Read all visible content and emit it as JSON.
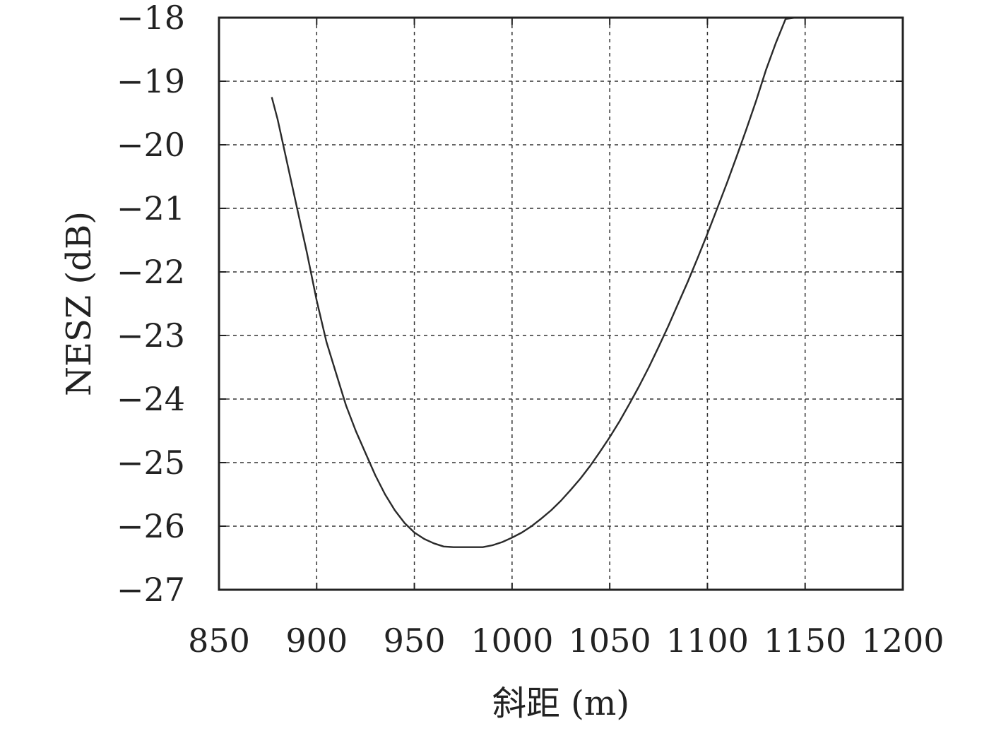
{
  "chart_data": {
    "type": "line",
    "title": "",
    "xlabel": "斜距 (m)",
    "ylabel": "NESZ (dB)",
    "xlim": [
      850,
      1200
    ],
    "ylim": [
      -27,
      -18
    ],
    "xticks": [
      850,
      900,
      950,
      1000,
      1050,
      1100,
      1150,
      1200
    ],
    "yticks": [
      -18,
      -19,
      -20,
      -21,
      -22,
      -23,
      -24,
      -25,
      -26,
      -27
    ],
    "xtick_labels": [
      "850",
      "900",
      "950",
      "1000",
      "1050",
      "1100",
      "1150",
      "1200"
    ],
    "ytick_labels": [
      "−18",
      "−19",
      "−20",
      "−21",
      "−22",
      "−23",
      "−24",
      "−25",
      "−26",
      "−27"
    ],
    "grid": true,
    "series": [
      {
        "color": "#2a2a2a",
        "x": [
          877,
          880,
          885,
          890,
          895,
          900,
          905,
          910,
          915,
          920,
          925,
          930,
          935,
          940,
          945,
          950,
          955,
          960,
          965,
          970,
          975,
          980,
          985,
          990,
          995,
          1000,
          1005,
          1010,
          1015,
          1020,
          1025,
          1030,
          1035,
          1040,
          1045,
          1050,
          1055,
          1060,
          1065,
          1070,
          1075,
          1080,
          1085,
          1090,
          1095,
          1100,
          1105,
          1110,
          1115,
          1120,
          1125,
          1130,
          1135,
          1140,
          1145,
          1150,
          1155,
          1160,
          1163
        ],
        "y": [
          -19.25,
          -19.6,
          -20.3,
          -21.0,
          -21.7,
          -22.45,
          -23.1,
          -23.6,
          -24.1,
          -24.5,
          -24.85,
          -25.2,
          -25.5,
          -25.75,
          -25.95,
          -26.1,
          -26.2,
          -26.27,
          -26.32,
          -26.33,
          -26.33,
          -26.33,
          -26.33,
          -26.3,
          -26.25,
          -26.18,
          -26.1,
          -26.0,
          -25.88,
          -25.75,
          -25.6,
          -25.43,
          -25.25,
          -25.05,
          -24.83,
          -24.6,
          -24.35,
          -24.08,
          -23.8,
          -23.5,
          -23.18,
          -22.85,
          -22.5,
          -22.15,
          -21.78,
          -21.4,
          -21.0,
          -20.6,
          -20.18,
          -19.75,
          -19.3,
          -18.82,
          -18.4,
          -18.02,
          -17.7,
          -18.0,
          -18.0,
          -18.0,
          -18.0
        ]
      }
    ]
  }
}
